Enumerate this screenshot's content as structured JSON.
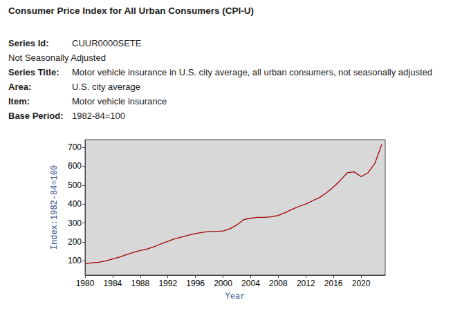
{
  "header": {
    "title": "Consumer Price Index for All Urban Consumers (CPI-U)",
    "rows": [
      {
        "label": "Series Id:",
        "value": "CUUR0000SETE"
      },
      {
        "text": "Not Seasonally Adjusted"
      },
      {
        "label": "Series Title:",
        "value": "Motor vehicle insurance in U.S. city average, all urban consumers, not seasonally adjusted"
      },
      {
        "label": "Area:",
        "value": "U.S. city average"
      },
      {
        "label": "Item:",
        "value": "Motor vehicle insurance"
      },
      {
        "label": "Base Period:",
        "value": "1982-84=100"
      }
    ]
  },
  "chart_data": {
    "type": "line",
    "x_label": "Year",
    "y_label": "Index:1982-84=100",
    "x": [
      1980,
      1981,
      1982,
      1983,
      1984,
      1985,
      1986,
      1987,
      1988,
      1989,
      1990,
      1991,
      1992,
      1993,
      1994,
      1995,
      1996,
      1997,
      1998,
      1999,
      2000,
      2001,
      2002,
      2003,
      2004,
      2005,
      2006,
      2007,
      2008,
      2009,
      2010,
      2011,
      2012,
      2013,
      2014,
      2015,
      2016,
      2017,
      2018,
      2019,
      2020,
      2021,
      2022,
      2023
    ],
    "series": [
      {
        "name": "Motor vehicle insurance",
        "color": "#a00000",
        "values": [
          85,
          90,
          93,
          100,
          110,
          120,
          133,
          145,
          155,
          163,
          175,
          190,
          203,
          217,
          226,
          236,
          244,
          251,
          255,
          255,
          258,
          270,
          290,
          318,
          325,
          330,
          330,
          333,
          340,
          355,
          372,
          388,
          400,
          418,
          435,
          460,
          490,
          525,
          565,
          570,
          545,
          565,
          615,
          715
        ]
      }
    ],
    "xlim": [
      1980,
      2023.5
    ],
    "xticks": [
      1980,
      1984,
      1988,
      1992,
      1996,
      2000,
      2004,
      2008,
      2012,
      2016,
      2020
    ],
    "ylim": [
      25,
      740
    ],
    "yticks": [
      100,
      200,
      300,
      400,
      500,
      600,
      700
    ],
    "grid": false
  }
}
